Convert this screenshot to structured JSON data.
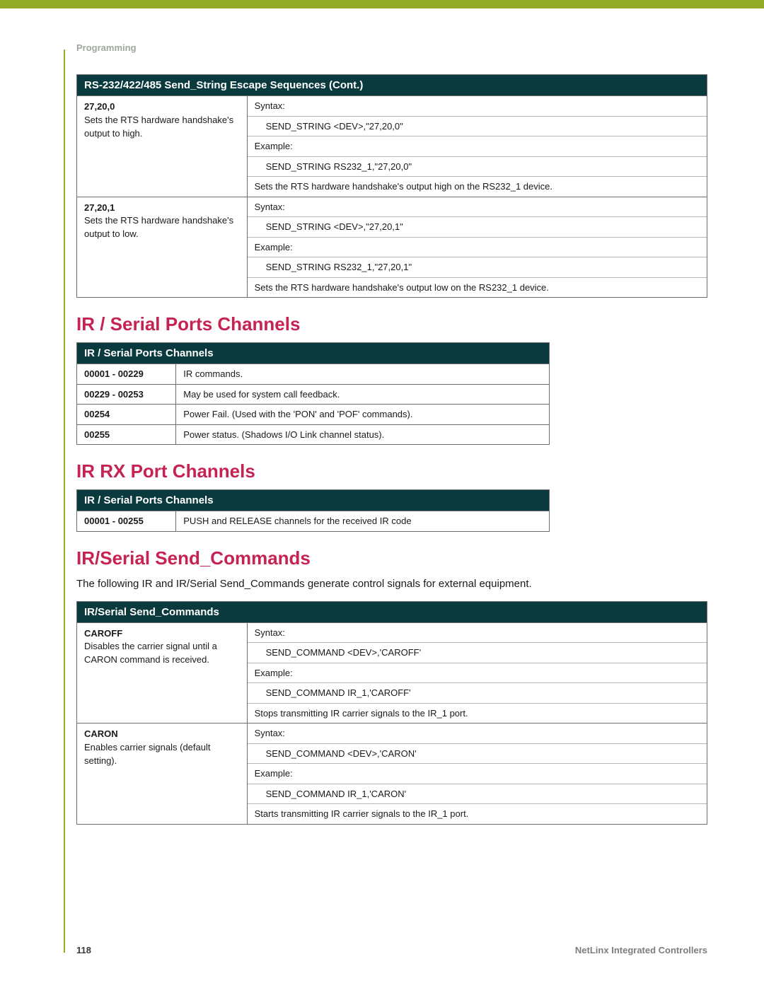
{
  "colors": {
    "accent_bar": "#94ab2a",
    "table_header_bg": "#0a3a3e",
    "table_header_text": "#ffffff",
    "heading_text": "#c62353",
    "section_label": "#9da89a",
    "border": "#6e6e6e",
    "inner_border": "#b5b5b5",
    "footer_muted": "#7d7d7d"
  },
  "typography": {
    "heading_fontsize_pt": 20,
    "table_header_fontsize_pt": 11,
    "body_fontsize_pt": 10,
    "font_family": "Arial"
  },
  "header": {
    "section_label": "Programming"
  },
  "table1": {
    "title": "RS-232/422/485 Send_String Escape Sequences (Cont.)",
    "rows": [
      {
        "cmd": "27,20,0",
        "desc": "Sets the RTS hardware handshake's output to high.",
        "lines": [
          {
            "text": "Syntax:",
            "indent": false
          },
          {
            "text": "SEND_STRING <DEV>,\"27,20,0\"",
            "indent": true
          },
          {
            "text": "Example:",
            "indent": false
          },
          {
            "text": "SEND_STRING RS232_1,\"27,20,0\"",
            "indent": true
          },
          {
            "text": "Sets the RTS hardware handshake's output high on the RS232_1 device.",
            "indent": false
          }
        ]
      },
      {
        "cmd": "27,20,1",
        "desc": "Sets the RTS hardware handshake's output to low.",
        "lines": [
          {
            "text": "Syntax:",
            "indent": false
          },
          {
            "text": "SEND_STRING <DEV>,\"27,20,1\"",
            "indent": true
          },
          {
            "text": "Example:",
            "indent": false
          },
          {
            "text": "SEND_STRING RS232_1,\"27,20,1\"",
            "indent": true
          },
          {
            "text": "Sets the RTS hardware handshake's output low on the RS232_1 device.",
            "indent": false
          }
        ]
      }
    ]
  },
  "section2": {
    "heading": "IR / Serial Ports Channels",
    "table": {
      "title": "IR / Serial Ports Channels",
      "rows": [
        {
          "code": "00001 - 00229",
          "text": "IR commands."
        },
        {
          "code": "00229 - 00253",
          "text": "May be used for system call feedback."
        },
        {
          "code": "00254",
          "text": "Power Fail. (Used with the 'PON' and 'POF' commands)."
        },
        {
          "code": "00255",
          "text": "Power status. (Shadows I/O Link channel status)."
        }
      ]
    }
  },
  "section3": {
    "heading": "IR RX Port Channels",
    "table": {
      "title": "IR / Serial Ports Channels",
      "rows": [
        {
          "code": "00001 - 00255",
          "text": "PUSH and RELEASE channels for the received IR code"
        }
      ]
    }
  },
  "section4": {
    "heading": "IR/Serial Send_Commands",
    "intro": "The following IR and IR/Serial Send_Commands generate control signals for external equipment.",
    "table": {
      "title": "IR/Serial Send_Commands",
      "rows": [
        {
          "cmd": "CAROFF",
          "desc": "Disables the carrier signal until a CARON command is received.",
          "lines": [
            {
              "text": "Syntax:",
              "indent": false
            },
            {
              "text": "SEND_COMMAND <DEV>,'CAROFF'",
              "indent": true
            },
            {
              "text": "Example:",
              "indent": false
            },
            {
              "text": "SEND_COMMAND IR_1,'CAROFF'",
              "indent": true
            },
            {
              "text": "Stops transmitting IR carrier signals to the IR_1 port.",
              "indent": false
            }
          ]
        },
        {
          "cmd": "CARON",
          "desc": "Enables carrier signals (default setting).",
          "lines": [
            {
              "text": "Syntax:",
              "indent": false
            },
            {
              "text": "SEND_COMMAND <DEV>,'CARON'",
              "indent": true
            },
            {
              "text": "Example:",
              "indent": false
            },
            {
              "text": "SEND_COMMAND IR_1,'CARON'",
              "indent": true
            },
            {
              "text": "Starts transmitting IR carrier signals to the IR_1 port.",
              "indent": false
            }
          ]
        }
      ]
    }
  },
  "footer": {
    "page_number": "118",
    "book_title": "NetLinx Integrated Controllers"
  }
}
